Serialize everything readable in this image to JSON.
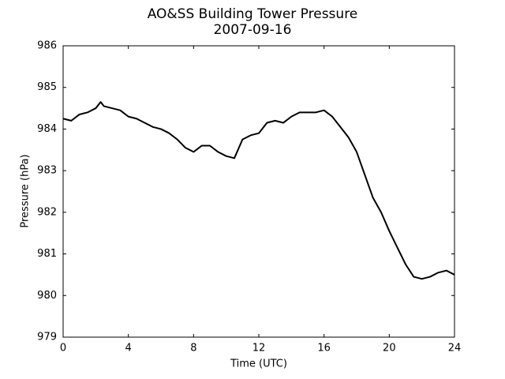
{
  "chart_data": {
    "type": "line",
    "title": "AO&SS Building Tower Pressure",
    "subtitle": "2007-09-16",
    "x_label": "Time (UTC)",
    "y_label": "Pressure (hPa)",
    "xlim": [
      0,
      24
    ],
    "xticks": [
      0,
      4,
      8,
      12,
      16,
      20,
      24
    ],
    "ylim": [
      979,
      986
    ],
    "yticks": [
      979,
      980,
      981,
      982,
      983,
      984,
      985,
      986
    ],
    "series": [
      {
        "color": "#000000",
        "x": [
          0,
          0.5,
          1,
          1.5,
          2,
          2.3,
          2.5,
          3,
          3.5,
          4,
          4.5,
          5,
          5.5,
          6,
          6.5,
          7,
          7.5,
          8,
          8.5,
          9,
          9.5,
          10,
          10.5,
          11,
          11.5,
          12,
          12.5,
          13,
          13.5,
          14,
          14.5,
          15,
          15.5,
          16,
          16.5,
          17,
          17.5,
          18,
          18.5,
          19,
          19.5,
          20,
          20.5,
          21,
          21.5,
          22,
          22.5,
          23,
          23.5,
          24
        ],
        "values": [
          984.25,
          984.2,
          984.35,
          984.4,
          984.5,
          984.65,
          984.55,
          984.5,
          984.45,
          984.3,
          984.25,
          984.15,
          984.05,
          984.0,
          983.9,
          983.75,
          983.55,
          983.45,
          983.6,
          983.6,
          983.45,
          983.35,
          983.3,
          983.75,
          983.85,
          983.9,
          984.15,
          984.2,
          984.15,
          984.3,
          984.4,
          984.4,
          984.4,
          984.45,
          984.3,
          984.05,
          983.8,
          983.45,
          982.9,
          982.35,
          982.0,
          981.55,
          981.15,
          980.75,
          980.45,
          980.4,
          980.45,
          980.55,
          980.6,
          980.5
        ]
      }
    ]
  }
}
